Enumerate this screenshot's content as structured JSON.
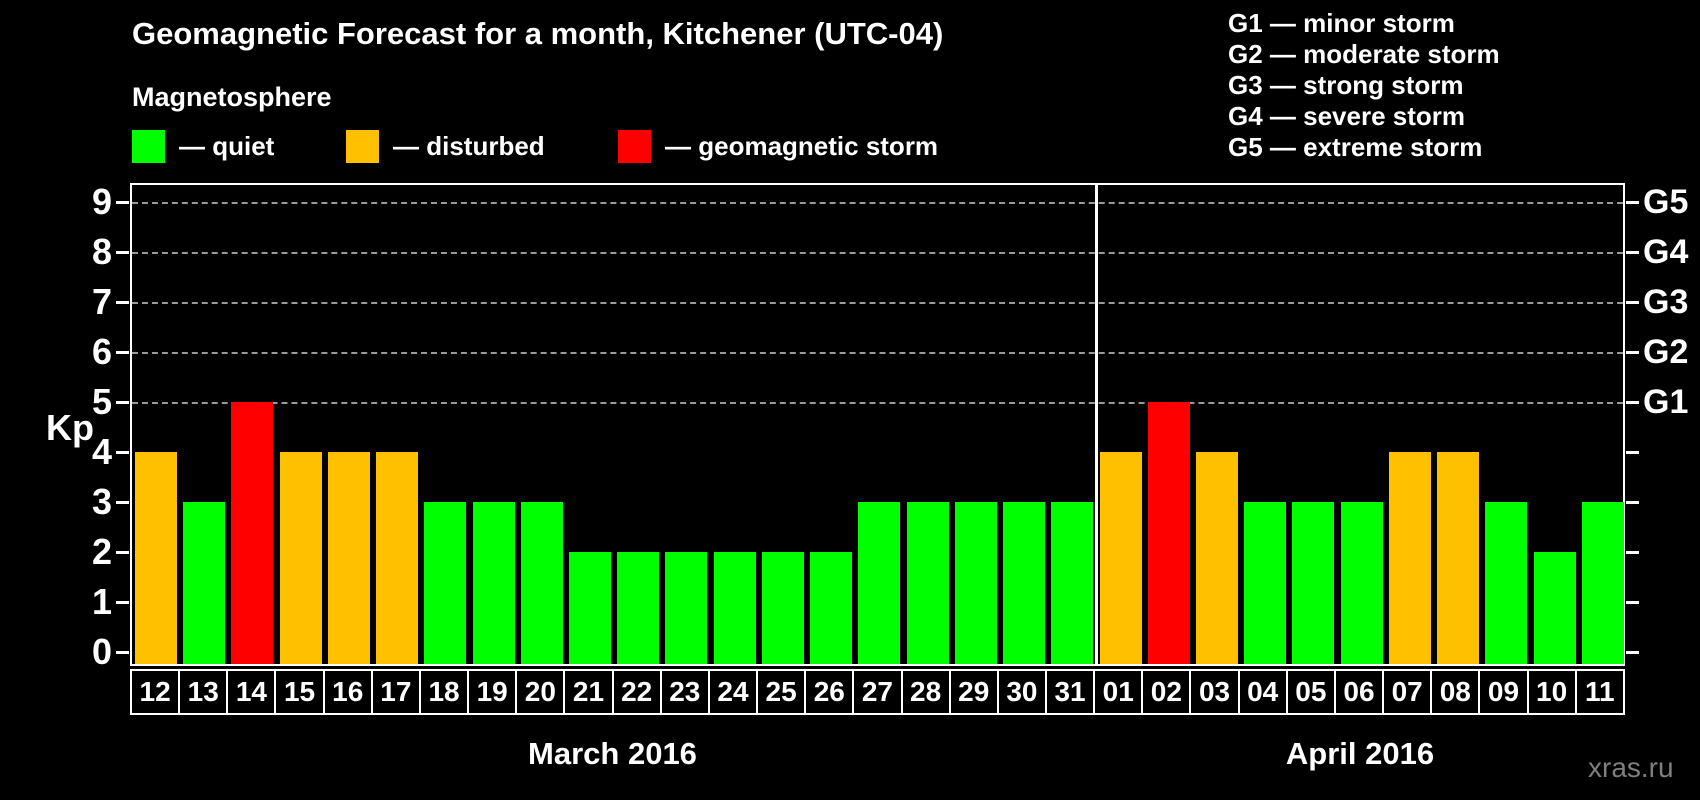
{
  "title": "Geomagnetic Forecast for a month, Kitchener (UTC-04)",
  "subtitle": "Magnetosphere",
  "magnetosphere_legend": {
    "quiet": "— quiet",
    "disturbed": "— disturbed",
    "storm": "— geomagnetic storm"
  },
  "storm_scale_legend": [
    {
      "label": "G1 — minor storm"
    },
    {
      "label": "G2 — moderate storm"
    },
    {
      "label": "G3 — strong storm"
    },
    {
      "label": "G4 — severe storm"
    },
    {
      "label": "G5 — extreme storm"
    }
  ],
  "colors": {
    "quiet": "#00ff00",
    "disturbed": "#ffc000",
    "storm": "#ff0000",
    "axis": "#ffffff",
    "grid": "#9a9a9a",
    "background": "#000000",
    "watermark": "#7f7f7f"
  },
  "axes": {
    "y_label": "Kp",
    "y_tick_labels": [
      "0",
      "1",
      "2",
      "3",
      "4",
      "5",
      "6",
      "7",
      "8",
      "9"
    ],
    "right_axis_labels": [
      {
        "kp": 5,
        "label": "G1"
      },
      {
        "kp": 6,
        "label": "G2"
      },
      {
        "kp": 7,
        "label": "G3"
      },
      {
        "kp": 8,
        "label": "G4"
      },
      {
        "kp": 9,
        "label": "G5"
      }
    ]
  },
  "chart_data": {
    "type": "bar",
    "title": "Geomagnetic Forecast for a month, Kitchener (UTC-04)",
    "xlabel": "",
    "ylabel": "Kp",
    "ylim": [
      0,
      9.4
    ],
    "grid": "dashed horizontal at Kp 5-9",
    "gridlines_kp": [
      5,
      6,
      7,
      8,
      9
    ],
    "color_rule": {
      "kp_le_3": "quiet",
      "kp_4": "disturbed",
      "kp_ge_5": "storm"
    },
    "series": [
      {
        "month": "March 2016",
        "days": [
          "12",
          "13",
          "14",
          "15",
          "16",
          "17",
          "18",
          "19",
          "20",
          "21",
          "22",
          "23",
          "24",
          "25",
          "26",
          "27",
          "28",
          "29",
          "30",
          "31"
        ],
        "kp": [
          4,
          3,
          5,
          4,
          4,
          4,
          3,
          3,
          3,
          2,
          2,
          2,
          2,
          2,
          2,
          3,
          3,
          3,
          3,
          3
        ]
      },
      {
        "month": "April 2016",
        "days": [
          "01",
          "02",
          "03",
          "04",
          "05",
          "06",
          "07",
          "08",
          "09",
          "10",
          "11"
        ],
        "kp": [
          4,
          5,
          4,
          3,
          3,
          3,
          4,
          4,
          3,
          2,
          3
        ]
      }
    ]
  },
  "watermark": "xras.ru"
}
